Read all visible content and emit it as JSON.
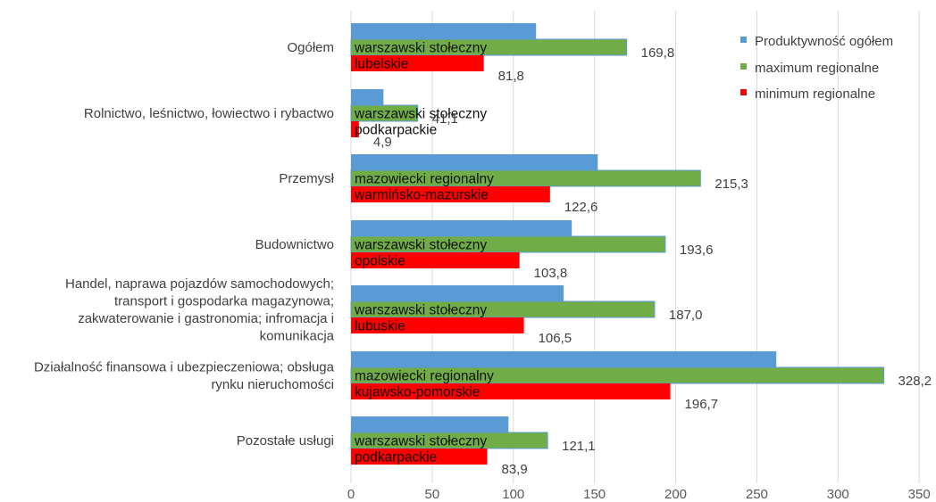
{
  "chart_data": {
    "type": "bar",
    "orientation": "horizontal",
    "categories": [
      [
        "Ogółem"
      ],
      [
        "Rolnictwo, leśnictwo, łowiectwo i rybactwo"
      ],
      [
        "Przemysł"
      ],
      [
        "Budownictwo"
      ],
      [
        "Handel, naprawa pojazdów samochodowych;",
        "transport i gospodarka magazynowa;",
        "zakwaterowanie i gastronomia; infromacja i",
        "komunikacja"
      ],
      [
        "Działalność finansowa i ubezpieczeniowa; obsługa",
        "rynku nieruchomości"
      ],
      [
        "Pozostałe usługi"
      ]
    ],
    "series": [
      {
        "name": "Produktywność ogółem",
        "color": "#5B9BD5",
        "values": [
          114,
          20,
          152,
          136,
          131,
          262,
          97
        ]
      },
      {
        "name": "maximum regionalne",
        "color": "#70AD47",
        "values": [
          169.8,
          41.1,
          215.3,
          193.6,
          187.0,
          328.2,
          121.1
        ],
        "value_labels": [
          "169,8",
          "41,1",
          "215,3",
          "193,6",
          "187,0",
          "328,2",
          "121,1"
        ],
        "region_labels": [
          "warszawski stołeczny",
          "warszawski stołeczny",
          "mazowiecki regionalny",
          "warszawski stołeczny",
          "warszawski stołeczny",
          "mazowiecki regionalny",
          "warszawski stołeczny"
        ]
      },
      {
        "name": "minimum regionalne",
        "color": "#FF0000",
        "values": [
          81.8,
          4.9,
          122.6,
          103.8,
          106.5,
          196.7,
          83.9
        ],
        "value_labels": [
          "81,8",
          "4,9",
          "122,6",
          "103,8",
          "106,5",
          "196,7",
          "83,9"
        ],
        "region_labels": [
          "lubelskie",
          "podkarpackie",
          "warmińsko-mazurskie",
          "opolskie",
          "lubuskie",
          "kujawsko-pomorskie",
          "podkarpackie"
        ]
      }
    ],
    "xlim": [
      0,
      350
    ],
    "xticks": [
      "0",
      "50",
      "100",
      "150",
      "200",
      "250",
      "300",
      "350"
    ],
    "xtick_values": [
      0,
      50,
      100,
      150,
      200,
      250,
      300,
      350
    ],
    "grid": true,
    "legend_position": "top-right"
  }
}
